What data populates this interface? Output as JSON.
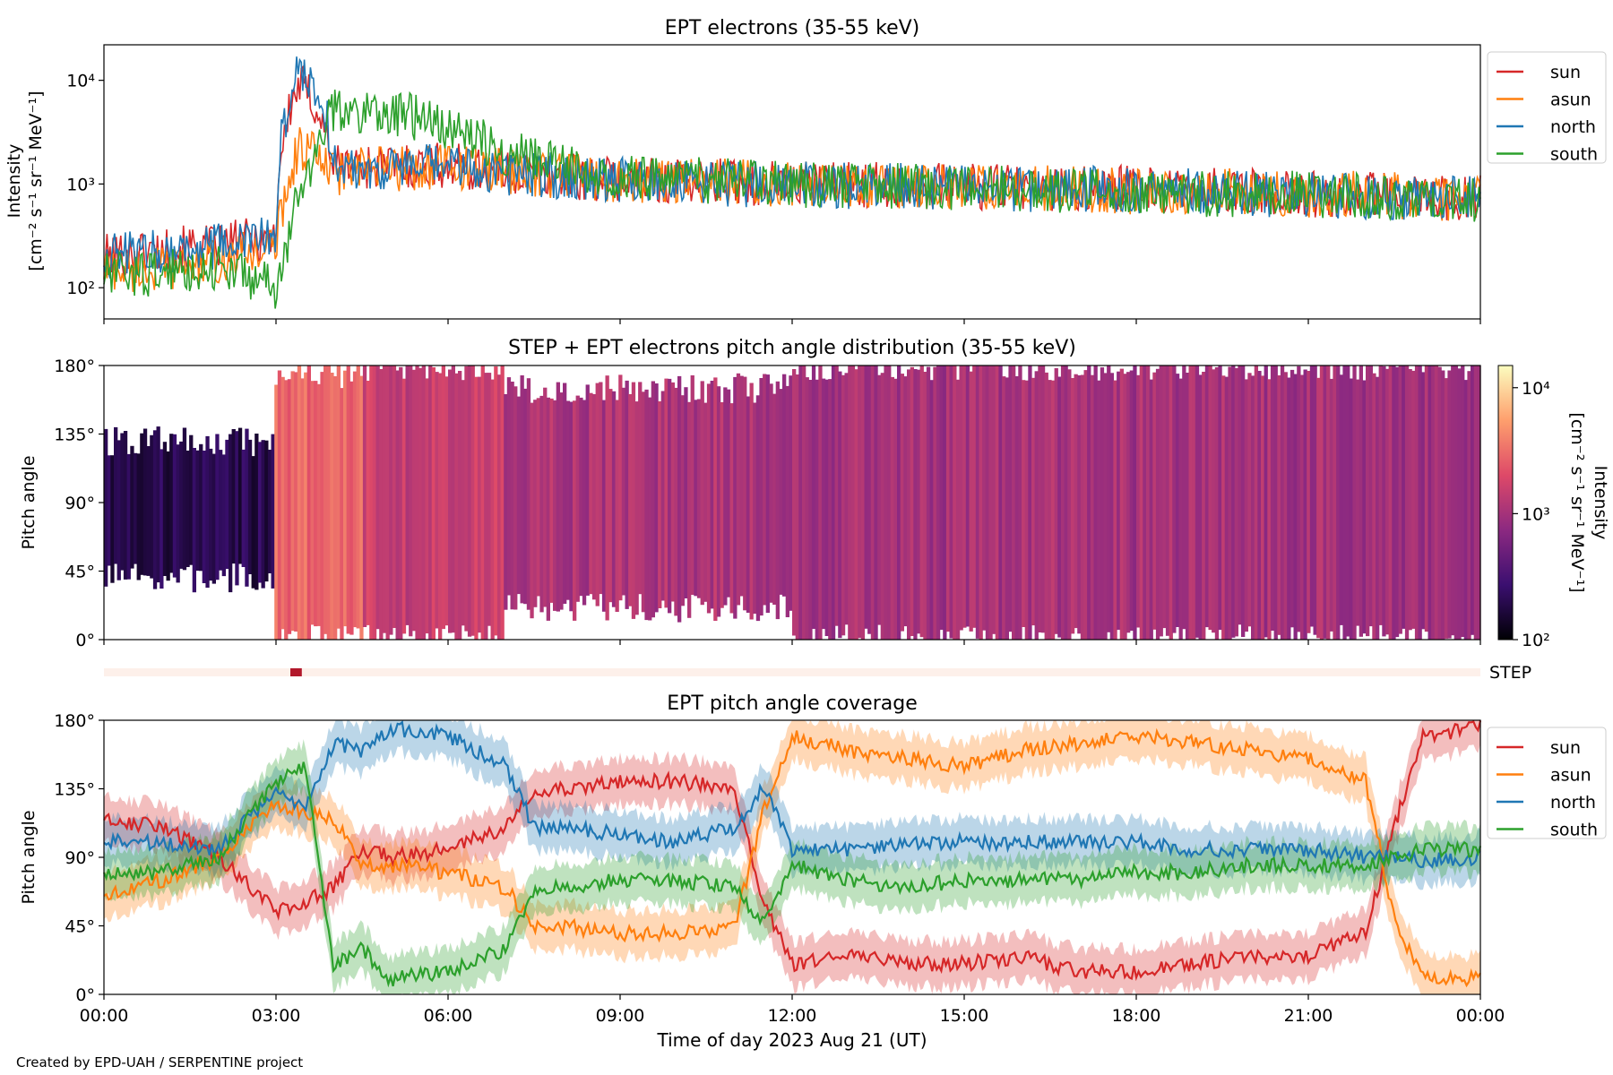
{
  "figure": {
    "credit": "Created by EPD-UAH / SERPENTINE project",
    "xlabel": "Time of day 2023 Aug 21 (UT)",
    "x_ticks": [
      "00:00",
      "03:00",
      "06:00",
      "09:00",
      "12:00",
      "15:00",
      "18:00",
      "21:00",
      "00:00"
    ],
    "step_bar_label": "STEP",
    "step_bar": {
      "active_from_hour": 3.25,
      "active_to_hour": 3.45
    }
  },
  "colors": {
    "sun": "#d62728",
    "asun": "#ff7f0e",
    "north": "#1f77b4",
    "south": "#2ca02c",
    "step_bg": "#fdf0ea",
    "step_active": "#b2182b"
  },
  "chart_data": [
    {
      "type": "line",
      "title": "EPT electrons (35-55 keV)",
      "ylabel_lines": [
        "Intensity",
        "[cm⁻² s⁻¹ sr⁻¹ MeV⁻¹]"
      ],
      "x_unit": "hours since 00:00",
      "xlim": [
        0,
        24
      ],
      "ylim": [
        50,
        22000
      ],
      "yscale": "log",
      "y_ticks": [
        "10²",
        "10³",
        "10⁴"
      ],
      "legend_placement": "outside-right",
      "x": [
        0,
        1,
        2,
        3,
        3.2,
        3.4,
        3.6,
        3.8,
        4,
        5,
        6,
        7,
        8,
        9,
        10,
        11,
        12,
        13,
        14,
        15,
        16,
        17,
        18,
        19,
        20,
        21,
        22,
        23,
        24
      ],
      "series": [
        {
          "name": "sun",
          "values": [
            200,
            230,
            250,
            320,
            4000,
            9000,
            7000,
            4000,
            1500,
            1500,
            1500,
            1300,
            1200,
            1100,
            1100,
            1050,
            1000,
            1000,
            950,
            950,
            900,
            900,
            900,
            850,
            850,
            800,
            800,
            750,
            750
          ]
        },
        {
          "name": "asun",
          "values": [
            150,
            150,
            180,
            250,
            900,
            2200,
            2200,
            1500,
            1300,
            1400,
            1500,
            1300,
            1200,
            1100,
            1050,
            1050,
            1000,
            1000,
            950,
            950,
            900,
            900,
            850,
            850,
            850,
            800,
            800,
            750,
            700
          ]
        },
        {
          "name": "north",
          "values": [
            200,
            230,
            250,
            320,
            5000,
            13000,
            10000,
            6000,
            1500,
            1400,
            1500,
            1300,
            1200,
            1100,
            1050,
            1000,
            1000,
            950,
            950,
            900,
            900,
            900,
            850,
            850,
            800,
            800,
            750,
            750,
            700
          ]
        },
        {
          "name": "south",
          "values": [
            130,
            140,
            160,
            100,
            200,
            800,
            1500,
            3000,
            5000,
            5000,
            3500,
            2000,
            1500,
            1200,
            1100,
            1050,
            1000,
            950,
            950,
            900,
            900,
            850,
            850,
            800,
            800,
            800,
            750,
            750,
            700
          ]
        }
      ]
    },
    {
      "type": "heatmap",
      "title": "STEP + EPT electrons pitch angle distribution (35-55 keV)",
      "ylabel": "Pitch angle",
      "y_ticks": [
        "0°",
        "45°",
        "90°",
        "135°",
        "180°"
      ],
      "ylim": [
        0,
        180
      ],
      "xlim": [
        0,
        24
      ],
      "colorbar": {
        "label_lines": [
          "Intensity",
          "[cm⁻² s⁻¹ sr⁻¹ MeV⁻¹]"
        ],
        "scale": "log",
        "range": [
          100,
          15000
        ],
        "ticks": [
          "10²",
          "10³",
          "10⁴"
        ]
      },
      "coverage_bands_pitch_angle": [
        {
          "from_hour": 0.0,
          "to_hour": 3.0,
          "lo": 40,
          "hi": 130,
          "intensity": 200
        },
        {
          "from_hour": 3.0,
          "to_hour": 4.5,
          "lo": 0,
          "hi": 175,
          "intensity": 3000
        },
        {
          "from_hour": 4.5,
          "to_hour": 7.0,
          "lo": 0,
          "hi": 180,
          "intensity": 1500
        },
        {
          "from_hour": 7.0,
          "to_hour": 12.0,
          "lo": 20,
          "hi": 165,
          "intensity": 1100
        },
        {
          "from_hour": 12.0,
          "to_hour": 22.0,
          "lo": 0,
          "hi": 180,
          "intensity": 1000
        },
        {
          "from_hour": 22.0,
          "to_hour": 24.0,
          "lo": 0,
          "hi": 180,
          "intensity": 900
        }
      ]
    },
    {
      "type": "line",
      "title": "EPT pitch angle coverage",
      "ylabel": "Pitch angle",
      "y_ticks": [
        "0°",
        "45°",
        "90°",
        "135°",
        "180°"
      ],
      "ylim": [
        0,
        180
      ],
      "xlim": [
        0,
        24
      ],
      "x_unit": "hours since 00:00",
      "legend_placement": "outside-right",
      "x": [
        0,
        1,
        2,
        3,
        3.5,
        4,
        4.5,
        5,
        6,
        7,
        7.5,
        8,
        9,
        10,
        11,
        11.5,
        12,
        13,
        14,
        15,
        16,
        17,
        18,
        19,
        20,
        21,
        22,
        22.5,
        23,
        24
      ],
      "series": [
        {
          "name": "sun",
          "values": [
            115,
            110,
            90,
            55,
            60,
            70,
            95,
            90,
            95,
            110,
            135,
            135,
            140,
            140,
            135,
            60,
            20,
            25,
            20,
            20,
            25,
            15,
            15,
            20,
            25,
            25,
            40,
            110,
            170,
            175
          ]
        },
        {
          "name": "asun",
          "values": [
            65,
            75,
            90,
            125,
            120,
            115,
            85,
            85,
            80,
            70,
            45,
            45,
            40,
            40,
            45,
            120,
            170,
            160,
            155,
            150,
            160,
            165,
            170,
            165,
            160,
            155,
            140,
            50,
            10,
            10
          ]
        },
        {
          "name": "north",
          "values": [
            100,
            100,
            95,
            135,
            120,
            165,
            160,
            175,
            170,
            150,
            110,
            110,
            105,
            100,
            110,
            135,
            95,
            95,
            100,
            100,
            100,
            100,
            100,
            95,
            95,
            95,
            90,
            90,
            88,
            90
          ]
        },
        {
          "name": "south",
          "values": [
            80,
            80,
            90,
            140,
            150,
            20,
            30,
            10,
            15,
            30,
            70,
            70,
            75,
            75,
            70,
            45,
            85,
            75,
            70,
            75,
            75,
            75,
            80,
            80,
            85,
            85,
            85,
            90,
            95,
            95
          ]
        }
      ]
    }
  ]
}
